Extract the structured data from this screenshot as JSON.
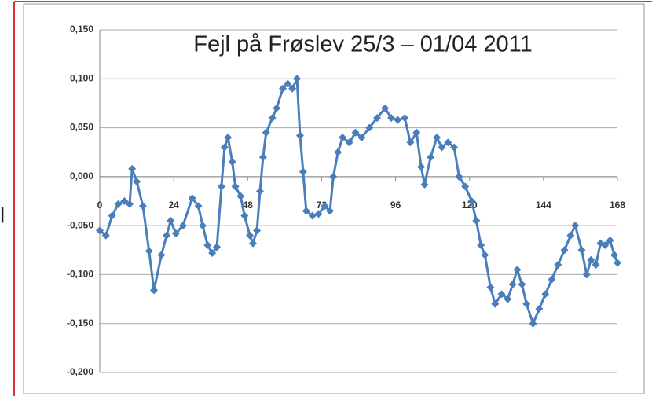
{
  "chart_data": {
    "type": "line",
    "title": "Fejl på Frøslev 25/3 – 01/04 2011",
    "side_text": "l",
    "x": [
      0,
      2,
      4,
      6,
      8,
      9.7,
      10.5,
      12,
      14,
      16,
      17.6,
      20,
      21.7,
      23,
      24.7,
      27,
      30,
      32,
      33.4,
      35,
      36.5,
      38,
      39.5,
      40.5,
      41.6,
      43,
      44,
      45.7,
      47,
      48.7,
      49.7,
      51,
      52,
      53,
      54,
      56,
      57.4,
      59.4,
      61,
      62.5,
      64,
      65,
      66,
      67,
      69,
      71,
      73,
      74.7,
      75.8,
      77.3,
      78.8,
      81,
      83,
      85,
      87.5,
      90,
      92.6,
      94.6,
      96.7,
      99,
      100.8,
      102.8,
      104.3,
      105.4,
      107.4,
      109.4,
      111,
      113,
      115,
      116.6,
      118.6,
      120.7,
      122.2,
      123.7,
      125,
      126.8,
      128.3,
      130.4,
      132.4,
      134,
      135.5,
      137,
      138.5,
      140.6,
      142.6,
      144.6,
      146.7,
      148.7,
      150.8,
      152.8,
      154.3,
      156.4,
      158,
      159.4,
      161,
      162.5,
      164,
      165.6,
      167,
      168
    ],
    "series": [
      {
        "color": "#4a7ebb",
        "values": [
          -0.055,
          -0.06,
          -0.04,
          -0.028,
          -0.025,
          -0.028,
          0.008,
          -0.005,
          -0.03,
          -0.076,
          -0.116,
          -0.08,
          -0.06,
          -0.045,
          -0.058,
          -0.05,
          -0.022,
          -0.03,
          -0.05,
          -0.07,
          -0.078,
          -0.072,
          -0.01,
          0.03,
          0.04,
          0.015,
          -0.01,
          -0.02,
          -0.04,
          -0.06,
          -0.068,
          -0.055,
          -0.015,
          0.02,
          0.045,
          0.06,
          0.07,
          0.09,
          0.095,
          0.09,
          0.1,
          0.042,
          0.005,
          -0.035,
          -0.04,
          -0.038,
          -0.03,
          -0.035,
          0.0,
          0.025,
          0.04,
          0.035,
          0.045,
          0.04,
          0.05,
          0.06,
          0.07,
          0.06,
          0.058,
          0.06,
          0.035,
          0.045,
          0.01,
          -0.008,
          0.02,
          0.04,
          0.03,
          0.035,
          0.03,
          0.0,
          -0.01,
          -0.025,
          -0.045,
          -0.07,
          -0.08,
          -0.113,
          -0.13,
          -0.12,
          -0.125,
          -0.11,
          -0.095,
          -0.11,
          -0.13,
          -0.15,
          -0.135,
          -0.12,
          -0.105,
          -0.09,
          -0.075,
          -0.06,
          -0.05,
          -0.075,
          -0.1,
          -0.085,
          -0.09,
          -0.068,
          -0.07,
          -0.065,
          -0.08,
          -0.088
        ]
      }
    ],
    "xlim": [
      0,
      168
    ],
    "xticks": [
      0,
      24,
      48,
      72,
      96,
      120,
      144,
      168
    ],
    "ylim": [
      -0.2,
      0.15
    ],
    "yticks": [
      {
        "value": -0.2,
        "label": "-0,200"
      },
      {
        "value": -0.15,
        "label": "-0,150"
      },
      {
        "value": -0.1,
        "label": "-0,100"
      },
      {
        "value": -0.05,
        "label": "-0,050"
      },
      {
        "value": 0,
        "label": "0,000"
      },
      {
        "value": 0.05,
        "label": "0,050"
      },
      {
        "value": 0.1,
        "label": "0,100"
      },
      {
        "value": 0.15,
        "label": "0,150"
      }
    ],
    "grid": true
  }
}
